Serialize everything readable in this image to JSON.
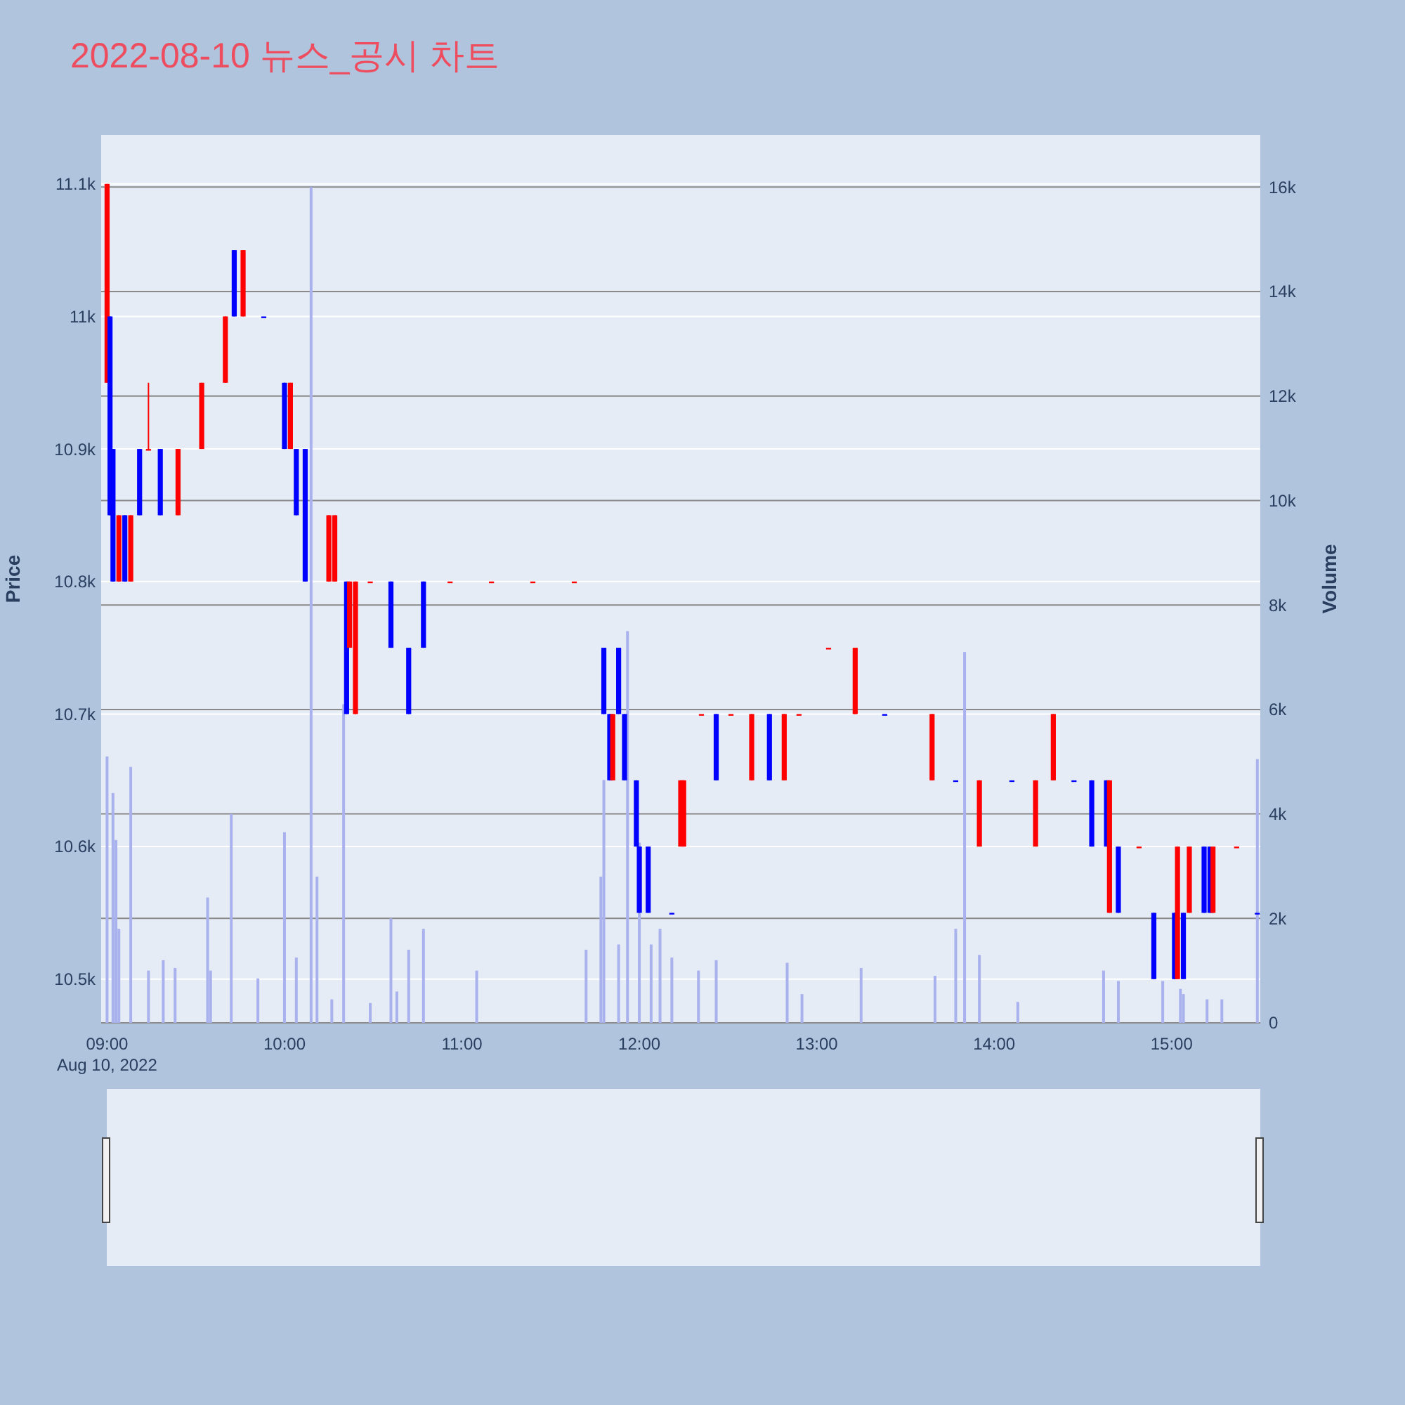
{
  "chart_data": {
    "type": "candlestick",
    "title": "2022-08-10 뉴스_공시 차트",
    "ylabel": "Price",
    "y2label": "Volume",
    "grid": true,
    "colors": [
      "#ff0000",
      "#0000ff",
      "#0000ff",
      "#ff0000",
      "#0000ff",
      "#ff0000",
      "#0000ff",
      "#ff0000",
      "#0000ff",
      "#ff0000",
      "#ff0000",
      "#ff0000",
      "#0000ff",
      "#ff0000",
      "#0000ff",
      "#0000ff",
      "#ff0000",
      "#0000ff",
      "#0000ff",
      "#ff0000",
      "#ff0000",
      "#0000ff",
      "#ff0000",
      "#ff0000",
      "#ff0000",
      "#0000ff",
      "#0000ff",
      "#0000ff",
      "#ff0000",
      "#ff0000",
      "#ff0000",
      "#ff0000",
      "#0000ff",
      "#0000ff",
      "#ff0000",
      "#0000ff",
      "#0000ff",
      "#0000ff",
      "#0000ff",
      "#0000ff",
      "#0000ff",
      "#ff0000",
      "#ff0000",
      "#ff0000",
      "#0000ff",
      "#ff0000",
      "#ff0000",
      "#0000ff",
      "#ff0000",
      "#ff0000",
      "#ff0000",
      "#ff0000",
      "#0000ff",
      "#ff0000",
      "#0000ff",
      "#ff0000",
      "#0000ff",
      "#ff0000",
      "#ff0000",
      "#0000ff",
      "#0000ff",
      "#0000ff",
      "#ff0000",
      "#0000ff",
      "#ff0000",
      "#0000ff",
      "#0000ff",
      "#ff0000",
      "#0000ff",
      "#ff0000",
      "#0000ff",
      "#0000ff",
      "#ff0000",
      "#ff0000",
      "#0000ff"
    ],
    "x": [
      "2022-08-10T09:00",
      "2022-08-10T09:01",
      "2022-08-10T09:02",
      "2022-08-10T09:04",
      "2022-08-10T09:06",
      "2022-08-10T09:08",
      "2022-08-10T09:11",
      "2022-08-10T09:14",
      "2022-08-10T09:18",
      "2022-08-10T09:24",
      "2022-08-10T09:32",
      "2022-08-10T09:40",
      "2022-08-10T09:43",
      "2022-08-10T09:46",
      "2022-08-10T09:53",
      "2022-08-10T10:00",
      "2022-08-10T10:02",
      "2022-08-10T10:04",
      "2022-08-10T10:07",
      "2022-08-10T10:15",
      "2022-08-10T10:17",
      "2022-08-10T10:21",
      "2022-08-10T10:22",
      "2022-08-10T10:24",
      "2022-08-10T10:29",
      "2022-08-10T10:36",
      "2022-08-10T10:42",
      "2022-08-10T10:47",
      "2022-08-10T10:56",
      "2022-08-10T11:10",
      "2022-08-10T11:24",
      "2022-08-10T11:38",
      "2022-08-10T11:48",
      "2022-08-10T11:50",
      "2022-08-10T11:51",
      "2022-08-10T11:53",
      "2022-08-10T11:55",
      "2022-08-10T11:59",
      "2022-08-10T12:00",
      "2022-08-10T12:03",
      "2022-08-10T12:11",
      "2022-08-10T12:14",
      "2022-08-10T12:15",
      "2022-08-10T12:21",
      "2022-08-10T12:26",
      "2022-08-10T12:31",
      "2022-08-10T12:38",
      "2022-08-10T12:44",
      "2022-08-10T12:49",
      "2022-08-10T12:54",
      "2022-08-10T13:04",
      "2022-08-10T13:13",
      "2022-08-10T13:23",
      "2022-08-10T13:39",
      "2022-08-10T13:47",
      "2022-08-10T13:55",
      "2022-08-10T14:06",
      "2022-08-10T14:14",
      "2022-08-10T14:20",
      "2022-08-10T14:27",
      "2022-08-10T14:33",
      "2022-08-10T14:38",
      "2022-08-10T14:39",
      "2022-08-10T14:42",
      "2022-08-10T14:49",
      "2022-08-10T14:54",
      "2022-08-10T15:01",
      "2022-08-10T15:02",
      "2022-08-10T15:04",
      "2022-08-10T15:06",
      "2022-08-10T15:11",
      "2022-08-10T15:13",
      "2022-08-10T15:14",
      "2022-08-10T15:22",
      "2022-08-10T15:29"
    ],
    "ohlc": [
      [
        10950,
        11100,
        10950,
        11100
      ],
      [
        11000,
        11000,
        10850,
        10850
      ],
      [
        10900,
        10900,
        10800,
        10800
      ],
      [
        10800,
        10850,
        10800,
        10850
      ],
      [
        10850,
        10850,
        10800,
        10800
      ],
      [
        10800,
        10850,
        10800,
        10850
      ],
      [
        10900,
        10900,
        10850,
        10850
      ],
      [
        10900,
        10950,
        10900,
        10900
      ],
      [
        10900,
        10900,
        10850,
        10850
      ],
      [
        10850,
        10900,
        10850,
        10900
      ],
      [
        10900,
        10950,
        10900,
        10950
      ],
      [
        10950,
        11000,
        10950,
        11000
      ],
      [
        11050,
        11050,
        11000,
        11000
      ],
      [
        11000,
        11050,
        11000,
        11050
      ],
      [
        11000,
        11000,
        11000,
        11000
      ],
      [
        10950,
        10950,
        10900,
        10900
      ],
      [
        10900,
        10950,
        10900,
        10950
      ],
      [
        10900,
        10900,
        10850,
        10850
      ],
      [
        10900,
        10900,
        10800,
        10800
      ],
      [
        10800,
        10850,
        10800,
        10850
      ],
      [
        10800,
        10850,
        10800,
        10850
      ],
      [
        10800,
        10800,
        10700,
        10700
      ],
      [
        10750,
        10800,
        10750,
        10800
      ],
      [
        10700,
        10800,
        10700,
        10800
      ],
      [
        10800,
        10800,
        10800,
        10800
      ],
      [
        10800,
        10800,
        10750,
        10750
      ],
      [
        10750,
        10750,
        10700,
        10700
      ],
      [
        10800,
        10800,
        10750,
        10750
      ],
      [
        10800,
        10800,
        10800,
        10800
      ],
      [
        10800,
        10800,
        10800,
        10800
      ],
      [
        10800,
        10800,
        10800,
        10800
      ],
      [
        10800,
        10800,
        10800,
        10800
      ],
      [
        10750,
        10750,
        10700,
        10700
      ],
      [
        10700,
        10700,
        10650,
        10650
      ],
      [
        10650,
        10700,
        10650,
        10700
      ],
      [
        10750,
        10750,
        10700,
        10700
      ],
      [
        10700,
        10700,
        10650,
        10650
      ],
      [
        10650,
        10650,
        10600,
        10600
      ],
      [
        10600,
        10600,
        10550,
        10550
      ],
      [
        10600,
        10600,
        10550,
        10550
      ],
      [
        10550,
        10550,
        10550,
        10550
      ],
      [
        10600,
        10650,
        10600,
        10650
      ],
      [
        10600,
        10650,
        10600,
        10650
      ],
      [
        10700,
        10700,
        10700,
        10700
      ],
      [
        10700,
        10700,
        10650,
        10650
      ],
      [
        10700,
        10700,
        10700,
        10700
      ],
      [
        10650,
        10700,
        10650,
        10700
      ],
      [
        10700,
        10700,
        10650,
        10650
      ],
      [
        10650,
        10700,
        10650,
        10700
      ],
      [
        10700,
        10700,
        10700,
        10700
      ],
      [
        10750,
        10750,
        10750,
        10750
      ],
      [
        10700,
        10750,
        10700,
        10750
      ],
      [
        10700,
        10700,
        10700,
        10700
      ],
      [
        10650,
        10700,
        10650,
        10700
      ],
      [
        10650,
        10650,
        10650,
        10650
      ],
      [
        10600,
        10650,
        10600,
        10650
      ],
      [
        10650,
        10650,
        10650,
        10650
      ],
      [
        10600,
        10650,
        10600,
        10650
      ],
      [
        10650,
        10700,
        10650,
        10700
      ],
      [
        10650,
        10650,
        10650,
        10650
      ],
      [
        10650,
        10650,
        10600,
        10600
      ],
      [
        10650,
        10650,
        10600,
        10600
      ],
      [
        10550,
        10650,
        10550,
        10650
      ],
      [
        10600,
        10600,
        10550,
        10550
      ],
      [
        10600,
        10600,
        10600,
        10600
      ],
      [
        10550,
        10550,
        10500,
        10500
      ],
      [
        10550,
        10550,
        10500,
        10500
      ],
      [
        10500,
        10600,
        10500,
        10600
      ],
      [
        10550,
        10550,
        10500,
        10500
      ],
      [
        10550,
        10600,
        10550,
        10600
      ],
      [
        10600,
        10600,
        10550,
        10550
      ],
      [
        10600,
        10600,
        10550,
        10550
      ],
      [
        10550,
        10600,
        10550,
        10600
      ],
      [
        10600,
        10600,
        10600,
        10600
      ],
      [
        10550,
        10550,
        10550,
        10550
      ]
    ],
    "series": [
      {
        "type": "bar",
        "axis": "y2",
        "color": "#aab2ee",
        "x": [
          "2022-08-10T09:00",
          "2022-08-10T09:02",
          "2022-08-10T09:03",
          "2022-08-10T09:04",
          "2022-08-10T09:08",
          "2022-08-10T09:14",
          "2022-08-10T09:19",
          "2022-08-10T09:23",
          "2022-08-10T09:34",
          "2022-08-10T09:35",
          "2022-08-10T09:42",
          "2022-08-10T09:51",
          "2022-08-10T10:00",
          "2022-08-10T10:04",
          "2022-08-10T10:09",
          "2022-08-10T10:11",
          "2022-08-10T10:16",
          "2022-08-10T10:20",
          "2022-08-10T10:29",
          "2022-08-10T10:36",
          "2022-08-10T10:38",
          "2022-08-10T10:42",
          "2022-08-10T10:47",
          "2022-08-10T11:05",
          "2022-08-10T11:42",
          "2022-08-10T11:47",
          "2022-08-10T11:48",
          "2022-08-10T11:53",
          "2022-08-10T11:56",
          "2022-08-10T12:00",
          "2022-08-10T12:04",
          "2022-08-10T12:07",
          "2022-08-10T12:11",
          "2022-08-10T12:20",
          "2022-08-10T12:26",
          "2022-08-10T12:50",
          "2022-08-10T12:55",
          "2022-08-10T13:15",
          "2022-08-10T13:40",
          "2022-08-10T13:47",
          "2022-08-10T13:50",
          "2022-08-10T13:55",
          "2022-08-10T14:08",
          "2022-08-10T14:37",
          "2022-08-10T14:42",
          "2022-08-10T14:57",
          "2022-08-10T15:03",
          "2022-08-10T15:04",
          "2022-08-10T15:12",
          "2022-08-10T15:17",
          "2022-08-10T15:29"
        ],
        "values": [
          5100,
          4400,
          3500,
          1800,
          4900,
          1000,
          1200,
          1050,
          2400,
          1000,
          4000,
          850,
          3650,
          1250,
          16000,
          2800,
          450,
          6100,
          380,
          2000,
          600,
          1400,
          1800,
          1000,
          1400,
          2800,
          4650,
          1500,
          7500,
          3450,
          1500,
          1800,
          1250,
          1000,
          1200,
          1150,
          550,
          1050,
          900,
          1800,
          7100,
          1300,
          400,
          1000,
          800,
          800,
          650,
          550,
          450,
          450,
          5050
        ]
      }
    ],
    "xlim": [
      "2022-08-10T08:58",
      "2022-08-10T15:30"
    ],
    "xticks": [
      {
        "value": "2022-08-10T09:00",
        "label": "09:00"
      },
      {
        "value": "2022-08-10T10:00",
        "label": "10:00"
      },
      {
        "value": "2022-08-10T11:00",
        "label": "11:00"
      },
      {
        "value": "2022-08-10T12:00",
        "label": "12:00"
      },
      {
        "value": "2022-08-10T13:00",
        "label": "13:00"
      },
      {
        "value": "2022-08-10T14:00",
        "label": "14:00"
      },
      {
        "value": "2022-08-10T15:00",
        "label": "15:00"
      }
    ],
    "ylim": [
      10467,
      11137
    ],
    "yticks": [
      {
        "value": 10500,
        "label": "10.5k"
      },
      {
        "value": 10600,
        "label": "10.6k"
      },
      {
        "value": 10700,
        "label": "10.7k"
      },
      {
        "value": 10800,
        "label": "10.8k"
      },
      {
        "value": 10900,
        "label": "10.9k"
      },
      {
        "value": 11000,
        "label": "11k"
      },
      {
        "value": 11100,
        "label": "11.1k"
      }
    ],
    "y2lim": [
      0,
      17000
    ],
    "y2ticks": [
      0,
      {
        "value": 2000,
        "label": "2k"
      },
      {
        "value": 4000,
        "label": "4k"
      },
      {
        "value": 6000,
        "label": "6k"
      },
      {
        "value": 8000,
        "label": "8k"
      },
      {
        "value": 10000,
        "label": "10k"
      },
      {
        "value": 12000,
        "label": "12k"
      },
      {
        "value": 14000,
        "label": "14k"
      },
      {
        "value": 16000,
        "label": "16k"
      }
    ],
    "annotations": [
      "Aug 10, 2022"
    ]
  }
}
